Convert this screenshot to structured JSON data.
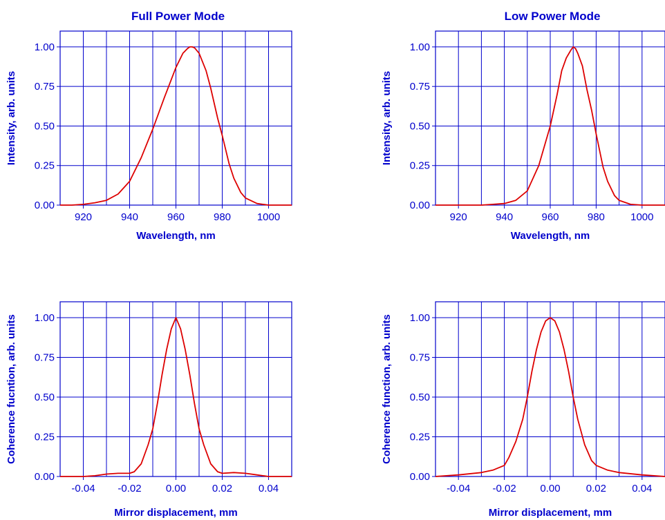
{
  "colors": {
    "axis": "#0000CC",
    "grid": "#0000CC",
    "curve": "#DD0000",
    "text": "#0000CC"
  },
  "chart_data": [
    {
      "type": "line",
      "title": "Full Power Mode",
      "xlabel": "Wavelength, nm",
      "ylabel": "Intensity, arb. units",
      "xlim": [
        910,
        1010
      ],
      "ylim": [
        0,
        1.1
      ],
      "xticks": [
        920,
        940,
        960,
        980,
        1000
      ],
      "xticklabels": [
        "920",
        "940",
        "960",
        "980",
        "1000"
      ],
      "xgrid": [
        920,
        930,
        940,
        950,
        960,
        970,
        980,
        990,
        1000
      ],
      "yticks": [
        0,
        0.25,
        0.5,
        0.75,
        1.0
      ],
      "yticklabels": [
        "0.00",
        "0.25",
        "0.50",
        "0.75",
        "1.00"
      ],
      "grid": true,
      "series": [
        {
          "x": [
            910,
            915,
            920,
            925,
            930,
            935,
            940,
            945,
            950,
            955,
            960,
            963,
            965,
            966,
            967,
            968,
            970,
            973,
            975,
            978,
            980,
            983,
            985,
            988,
            990,
            995,
            1000,
            1005,
            1010
          ],
          "y": [
            0.0,
            0.0,
            0.005,
            0.015,
            0.03,
            0.07,
            0.15,
            0.3,
            0.48,
            0.68,
            0.87,
            0.96,
            0.99,
            1.0,
            1.0,
            0.995,
            0.96,
            0.85,
            0.74,
            0.55,
            0.44,
            0.26,
            0.17,
            0.08,
            0.045,
            0.01,
            0.0,
            0.0,
            0.0
          ]
        }
      ]
    },
    {
      "type": "line",
      "title": "Low Power Mode",
      "xlabel": "Wavelength, nm",
      "ylabel": "Intensity, arb. units",
      "xlim": [
        910,
        1010
      ],
      "ylim": [
        0,
        1.1
      ],
      "xticks": [
        920,
        940,
        960,
        980,
        1000
      ],
      "xticklabels": [
        "920",
        "940",
        "960",
        "980",
        "1000"
      ],
      "xgrid": [
        920,
        930,
        940,
        950,
        960,
        970,
        980,
        990,
        1000
      ],
      "yticks": [
        0,
        0.25,
        0.5,
        0.75,
        1.0
      ],
      "yticklabels": [
        "0.00",
        "0.25",
        "0.50",
        "0.75",
        "1.00"
      ],
      "grid": true,
      "series": [
        {
          "x": [
            910,
            920,
            930,
            935,
            940,
            945,
            950,
            955,
            960,
            963,
            965,
            967,
            969,
            970,
            971,
            972,
            974,
            976,
            978,
            980,
            983,
            985,
            988,
            990,
            995,
            1000,
            1010
          ],
          "y": [
            0.0,
            0.0,
            0.0,
            0.005,
            0.01,
            0.03,
            0.09,
            0.25,
            0.5,
            0.7,
            0.85,
            0.93,
            0.98,
            1.0,
            0.99,
            0.96,
            0.88,
            0.73,
            0.6,
            0.45,
            0.24,
            0.15,
            0.06,
            0.03,
            0.005,
            0.0,
            0.0
          ]
        }
      ]
    },
    {
      "type": "line",
      "title": "",
      "xlabel": "Mirror displacement, mm",
      "ylabel": "Coherence fucntion, arb. units",
      "xlim": [
        -0.05,
        0.05
      ],
      "ylim": [
        0,
        1.1
      ],
      "xticks": [
        -0.04,
        -0.02,
        0.0,
        0.02,
        0.04
      ],
      "xticklabels": [
        "-0.04",
        "-0.02",
        "0.00",
        "0.02",
        "0.04"
      ],
      "xgrid": [
        -0.04,
        -0.03,
        -0.02,
        -0.01,
        0.0,
        0.01,
        0.02,
        0.03,
        0.04
      ],
      "yticks": [
        0,
        0.25,
        0.5,
        0.75,
        1.0
      ],
      "yticklabels": [
        "0.00",
        "0.25",
        "0.50",
        "0.75",
        "1.00"
      ],
      "grid": true,
      "series": [
        {
          "x": [
            -0.05,
            -0.04,
            -0.035,
            -0.03,
            -0.025,
            -0.02,
            -0.018,
            -0.015,
            -0.012,
            -0.01,
            -0.008,
            -0.006,
            -0.004,
            -0.002,
            0.0,
            0.002,
            0.004,
            0.006,
            0.008,
            0.01,
            0.012,
            0.015,
            0.018,
            0.02,
            0.025,
            0.03,
            0.035,
            0.04,
            0.05
          ],
          "y": [
            0.0,
            0.0,
            0.005,
            0.015,
            0.02,
            0.02,
            0.03,
            0.08,
            0.2,
            0.3,
            0.46,
            0.64,
            0.8,
            0.93,
            1.0,
            0.93,
            0.8,
            0.64,
            0.46,
            0.3,
            0.2,
            0.08,
            0.03,
            0.02,
            0.025,
            0.02,
            0.01,
            0.0,
            0.0
          ]
        }
      ]
    },
    {
      "type": "line",
      "title": "",
      "xlabel": "Mirror displacement, mm",
      "ylabel": "Coherence function, arb. units",
      "xlim": [
        -0.05,
        0.05
      ],
      "ylim": [
        0,
        1.1
      ],
      "xticks": [
        -0.04,
        -0.02,
        0.0,
        0.02,
        0.04
      ],
      "xticklabels": [
        "-0.04",
        "-0.02",
        "0.00",
        "0.02",
        "0.04"
      ],
      "xgrid": [
        -0.04,
        -0.03,
        -0.02,
        -0.01,
        0.0,
        0.01,
        0.02,
        0.03,
        0.04
      ],
      "yticks": [
        0,
        0.25,
        0.5,
        0.75,
        1.0
      ],
      "yticklabels": [
        "0.00",
        "0.25",
        "0.50",
        "0.75",
        "1.00"
      ],
      "grid": true,
      "series": [
        {
          "x": [
            -0.05,
            -0.04,
            -0.03,
            -0.025,
            -0.02,
            -0.018,
            -0.015,
            -0.012,
            -0.01,
            -0.008,
            -0.006,
            -0.004,
            -0.002,
            0.0,
            0.002,
            0.004,
            0.006,
            0.008,
            0.01,
            0.012,
            0.015,
            0.018,
            0.02,
            0.025,
            0.03,
            0.04,
            0.05
          ],
          "y": [
            0.0,
            0.01,
            0.025,
            0.04,
            0.07,
            0.12,
            0.22,
            0.36,
            0.5,
            0.66,
            0.8,
            0.91,
            0.98,
            1.0,
            0.98,
            0.91,
            0.8,
            0.66,
            0.5,
            0.36,
            0.2,
            0.1,
            0.07,
            0.04,
            0.025,
            0.01,
            0.0
          ]
        }
      ]
    }
  ]
}
